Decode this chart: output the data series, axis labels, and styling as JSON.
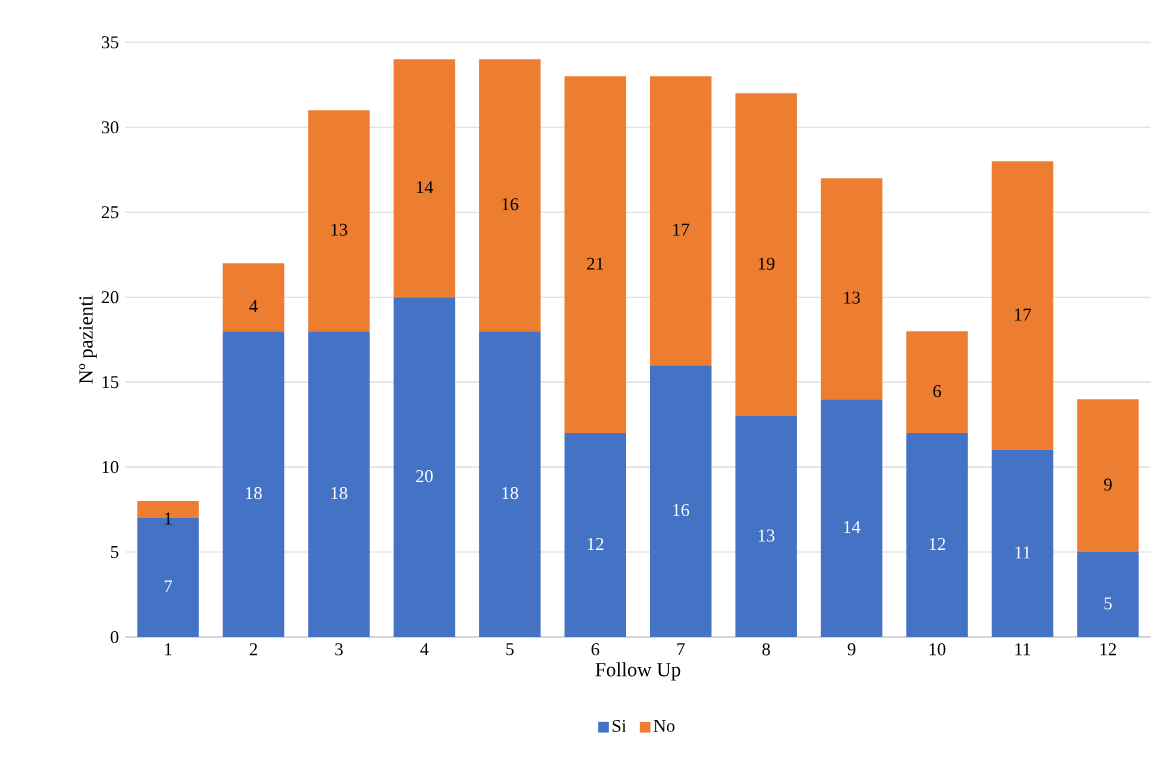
{
  "chart_data": {
    "type": "bar",
    "stacked": true,
    "xlabel": "Follow Up",
    "ylabel": "Nº pazienti",
    "categories": [
      "1",
      "2",
      "3",
      "4",
      "5",
      "6",
      "7",
      "8",
      "9",
      "10",
      "11",
      "12"
    ],
    "series": [
      {
        "name": "Si",
        "color": "#4472c4",
        "values": [
          7,
          18,
          18,
          20,
          18,
          12,
          16,
          13,
          14,
          12,
          11,
          5
        ]
      },
      {
        "name": "No",
        "color": "#ed7d31",
        "values": [
          1,
          4,
          13,
          14,
          16,
          21,
          17,
          19,
          13,
          6,
          17,
          9
        ]
      }
    ],
    "ylim": [
      0,
      35
    ],
    "yticks": [
      0,
      5,
      10,
      15,
      20,
      25,
      30,
      35
    ],
    "grid": "y",
    "legend": "bottom",
    "data_labels": true
  }
}
